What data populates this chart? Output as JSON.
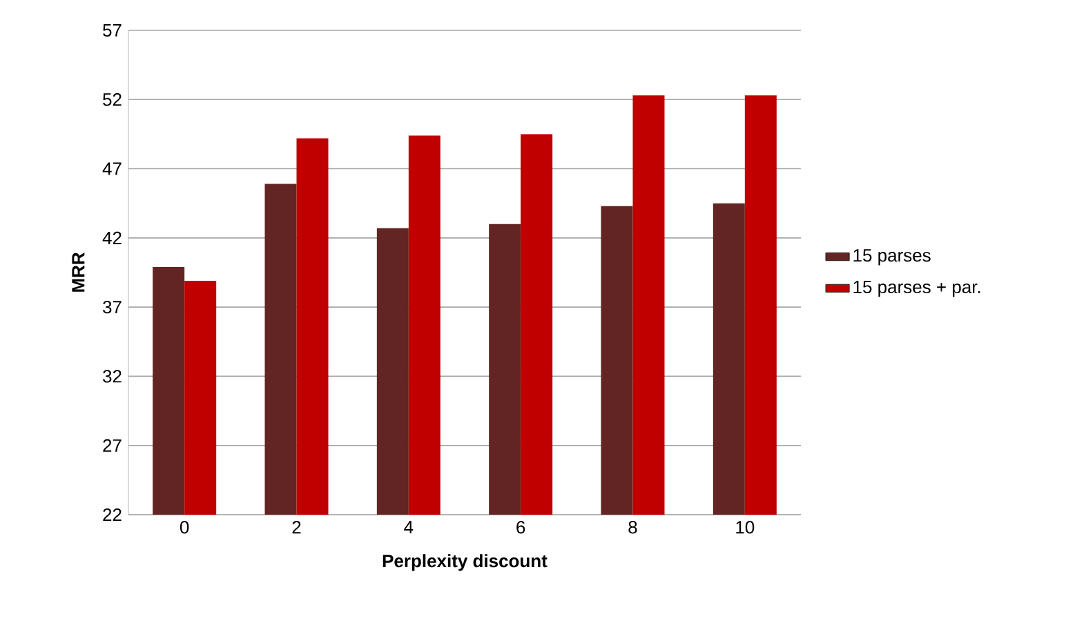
{
  "chart_data": {
    "type": "bar",
    "xlabel": "Perplexity discount",
    "ylabel": "MRR",
    "categories": [
      "0",
      "2",
      "4",
      "6",
      "8",
      "10"
    ],
    "series": [
      {
        "name": "15 parses",
        "color": "#632523",
        "values": [
          39.9,
          45.9,
          42.7,
          43.0,
          44.3,
          44.5
        ]
      },
      {
        "name": "15 parses + par.",
        "color": "#c00000",
        "values": [
          38.9,
          49.2,
          49.4,
          49.5,
          52.3,
          52.3
        ]
      }
    ],
    "ylim": [
      22,
      57
    ],
    "yticks": [
      22,
      27,
      32,
      37,
      42,
      47,
      52,
      57
    ],
    "grid": "y",
    "legend": "right"
  }
}
